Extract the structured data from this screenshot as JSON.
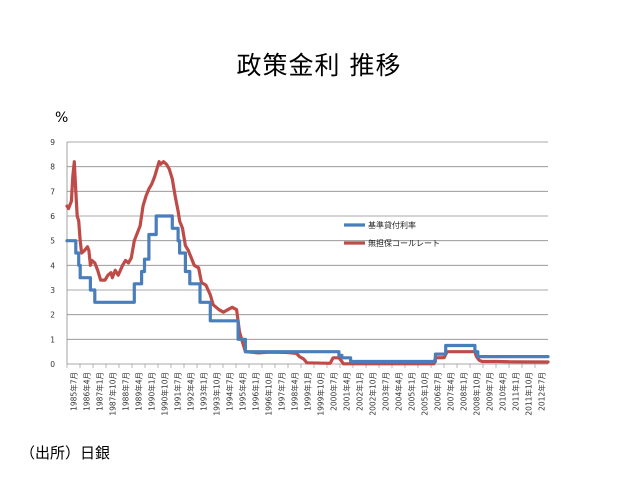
{
  "header": {
    "title": "政策金利 推移"
  },
  "units": {
    "percent": "%"
  },
  "source": {
    "text": "（出所）日銀"
  },
  "colors": {
    "series1": "#4a7ebb",
    "series2": "#be4b48",
    "grid": "#8c8c8c"
  },
  "chart_data": {
    "type": "line",
    "title": "政策金利 推移",
    "ylabel": "%",
    "ylim": [
      0,
      9
    ],
    "yticks": [
      "0",
      "1",
      "2",
      "3",
      "4",
      "5",
      "6",
      "7",
      "8",
      "9"
    ],
    "grid": true,
    "legend_position": "right",
    "x_start": "1985-07",
    "x_end": "2012-12",
    "xticks": [
      "1985年7月",
      "1986年4月",
      "1987年1月",
      "1987年10月",
      "1988年7月",
      "1989年4月",
      "1990年1月",
      "1990年10月",
      "1991年7月",
      "1992年4月",
      "1993年1月",
      "1993年10月",
      "1994年7月",
      "1995年4月",
      "1996年1月",
      "1996年10月",
      "1997年7月",
      "1998年4月",
      "1999年1月",
      "1999年10月",
      "2000年7月",
      "2001年4月",
      "2002年1月",
      "2002年10月",
      "2003年7月",
      "2004年4月",
      "2005年1月",
      "2005年10月",
      "2006年7月",
      "2007年4月",
      "2008年1月",
      "2008年10月",
      "2009年7月",
      "2010年4月",
      "2011年1月",
      "2011年10月",
      "2012年7月"
    ],
    "series": [
      {
        "name": "基準貸付利率",
        "color": "#4a7ebb",
        "points": [
          [
            "1985-07",
            5.0
          ],
          [
            "1986-01",
            5.0
          ],
          [
            "1986-01",
            4.5
          ],
          [
            "1986-03",
            4.5
          ],
          [
            "1986-03",
            4.0
          ],
          [
            "1986-04",
            4.0
          ],
          [
            "1986-04",
            3.5
          ],
          [
            "1986-11",
            3.5
          ],
          [
            "1986-11",
            3.0
          ],
          [
            "1987-02",
            3.0
          ],
          [
            "1987-02",
            2.5
          ],
          [
            "1989-05",
            2.5
          ],
          [
            "1989-05",
            3.25
          ],
          [
            "1989-10",
            3.25
          ],
          [
            "1989-10",
            3.75
          ],
          [
            "1989-12",
            3.75
          ],
          [
            "1989-12",
            4.25
          ],
          [
            "1990-03",
            4.25
          ],
          [
            "1990-03",
            5.25
          ],
          [
            "1990-08",
            5.25
          ],
          [
            "1990-08",
            6.0
          ],
          [
            "1991-07",
            6.0
          ],
          [
            "1991-07",
            5.5
          ],
          [
            "1991-11",
            5.5
          ],
          [
            "1991-11",
            5.0
          ],
          [
            "1991-12",
            5.0
          ],
          [
            "1991-12",
            4.5
          ],
          [
            "1992-04",
            4.5
          ],
          [
            "1992-04",
            3.75
          ],
          [
            "1992-07",
            3.75
          ],
          [
            "1992-07",
            3.25
          ],
          [
            "1993-02",
            3.25
          ],
          [
            "1993-02",
            2.5
          ],
          [
            "1993-09",
            2.5
          ],
          [
            "1993-09",
            1.75
          ],
          [
            "1995-04",
            1.75
          ],
          [
            "1995-04",
            1.0
          ],
          [
            "1995-09",
            1.0
          ],
          [
            "1995-09",
            0.5
          ],
          [
            "2001-01",
            0.5
          ],
          [
            "2001-01",
            0.35
          ],
          [
            "2001-03",
            0.35
          ],
          [
            "2001-03",
            0.25
          ],
          [
            "2001-09",
            0.25
          ],
          [
            "2001-09",
            0.1
          ],
          [
            "2006-07",
            0.1
          ],
          [
            "2006-07",
            0.4
          ],
          [
            "2007-02",
            0.4
          ],
          [
            "2007-02",
            0.75
          ],
          [
            "2008-10",
            0.75
          ],
          [
            "2008-10",
            0.5
          ],
          [
            "2008-12",
            0.5
          ],
          [
            "2008-12",
            0.3
          ],
          [
            "2012-12",
            0.3
          ]
        ]
      },
      {
        "name": "無担保コールレート",
        "color": "#be4b48",
        "points": [
          [
            "1985-07",
            6.4
          ],
          [
            "1985-08",
            6.3
          ],
          [
            "1985-10",
            6.6
          ],
          [
            "1985-11",
            7.6
          ],
          [
            "1985-12",
            8.2
          ],
          [
            "1986-01",
            7.0
          ],
          [
            "1986-02",
            6.0
          ],
          [
            "1986-03",
            5.8
          ],
          [
            "1986-04",
            5.0
          ],
          [
            "1986-05",
            4.5
          ],
          [
            "1986-07",
            4.6
          ],
          [
            "1986-09",
            4.75
          ],
          [
            "1986-10",
            4.6
          ],
          [
            "1986-11",
            4.0
          ],
          [
            "1986-12",
            4.2
          ],
          [
            "1987-02",
            4.1
          ],
          [
            "1987-04",
            3.8
          ],
          [
            "1987-06",
            3.4
          ],
          [
            "1987-09",
            3.4
          ],
          [
            "1987-11",
            3.6
          ],
          [
            "1988-01",
            3.7
          ],
          [
            "1988-02",
            3.5
          ],
          [
            "1988-04",
            3.8
          ],
          [
            "1988-06",
            3.6
          ],
          [
            "1988-09",
            4.0
          ],
          [
            "1988-11",
            4.2
          ],
          [
            "1989-01",
            4.1
          ],
          [
            "1989-03",
            4.3
          ],
          [
            "1989-05",
            5.0
          ],
          [
            "1989-07",
            5.3
          ],
          [
            "1989-09",
            5.6
          ],
          [
            "1989-11",
            6.4
          ],
          [
            "1990-01",
            6.8
          ],
          [
            "1990-03",
            7.1
          ],
          [
            "1990-05",
            7.3
          ],
          [
            "1990-07",
            7.6
          ],
          [
            "1990-09",
            8.0
          ],
          [
            "1990-10",
            8.2
          ],
          [
            "1990-11",
            8.1
          ],
          [
            "1991-01",
            8.2
          ],
          [
            "1991-03",
            8.1
          ],
          [
            "1991-05",
            7.9
          ],
          [
            "1991-07",
            7.5
          ],
          [
            "1991-09",
            6.8
          ],
          [
            "1991-11",
            6.2
          ],
          [
            "1991-12",
            5.8
          ],
          [
            "1992-02",
            5.5
          ],
          [
            "1992-04",
            4.8
          ],
          [
            "1992-06",
            4.6
          ],
          [
            "1992-08",
            4.3
          ],
          [
            "1992-10",
            4.0
          ],
          [
            "1993-01",
            3.9
          ],
          [
            "1993-03",
            3.3
          ],
          [
            "1993-06",
            3.2
          ],
          [
            "1993-09",
            2.8
          ],
          [
            "1993-11",
            2.4
          ],
          [
            "1994-03",
            2.2
          ],
          [
            "1994-06",
            2.1
          ],
          [
            "1994-09",
            2.2
          ],
          [
            "1994-12",
            2.3
          ],
          [
            "1995-03",
            2.2
          ],
          [
            "1995-05",
            1.3
          ],
          [
            "1995-07",
            0.9
          ],
          [
            "1995-09",
            0.5
          ],
          [
            "1996-06",
            0.45
          ],
          [
            "1997-01",
            0.48
          ],
          [
            "1997-12",
            0.47
          ],
          [
            "1998-03",
            0.46
          ],
          [
            "1998-08",
            0.43
          ],
          [
            "1998-10",
            0.3
          ],
          [
            "1999-01",
            0.2
          ],
          [
            "1999-03",
            0.05
          ],
          [
            "2000-07",
            0.03
          ],
          [
            "2000-09",
            0.25
          ],
          [
            "2001-01",
            0.25
          ],
          [
            "2001-03",
            0.1
          ],
          [
            "2001-04",
            0.01
          ],
          [
            "2006-06",
            0.01
          ],
          [
            "2006-07",
            0.25
          ],
          [
            "2007-01",
            0.26
          ],
          [
            "2007-03",
            0.5
          ],
          [
            "2008-10",
            0.5
          ],
          [
            "2008-11",
            0.3
          ],
          [
            "2009-01",
            0.15
          ],
          [
            "2009-03",
            0.1
          ],
          [
            "2010-01",
            0.1
          ],
          [
            "2010-10",
            0.09
          ],
          [
            "2012-12",
            0.08
          ]
        ]
      }
    ]
  }
}
